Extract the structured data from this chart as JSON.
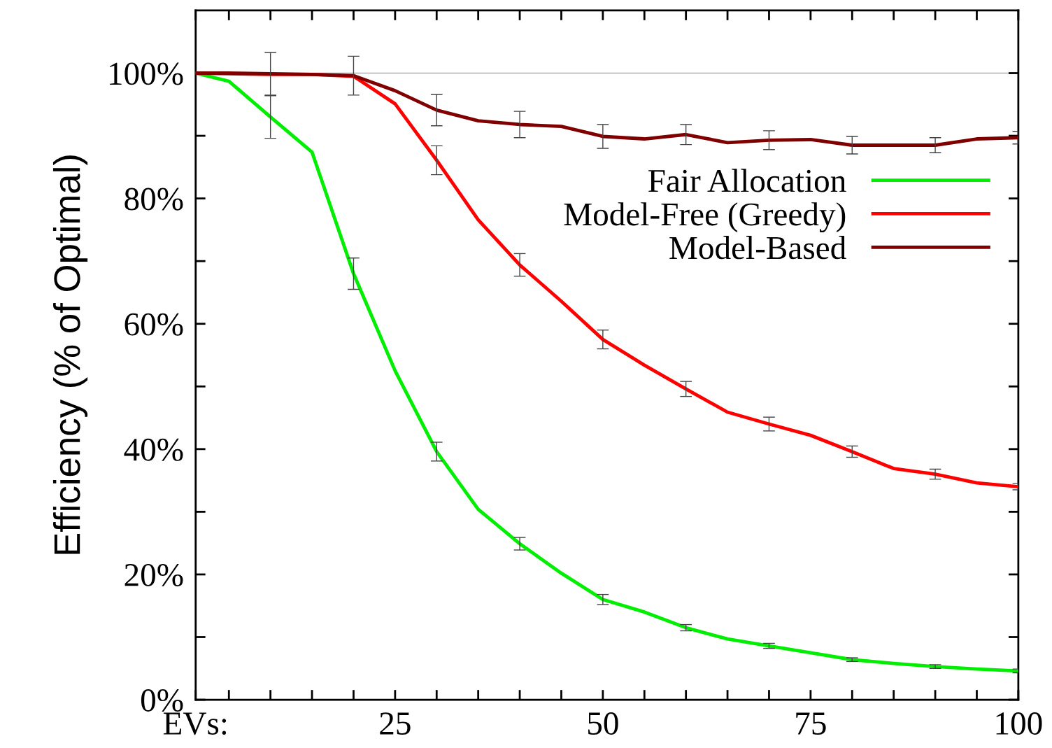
{
  "chart_data": {
    "type": "line",
    "ylabel": "Efficiency (% of Optimal)",
    "x": [
      1,
      5,
      10,
      15,
      20,
      25,
      30,
      35,
      40,
      45,
      50,
      55,
      60,
      65,
      70,
      75,
      80,
      85,
      90,
      95,
      100
    ],
    "xlim": [
      1,
      100
    ],
    "xticks": [
      {
        "value": 1,
        "label": "EVs:"
      },
      {
        "value": 5,
        "label": null
      },
      {
        "value": 10,
        "label": null
      },
      {
        "value": 15,
        "label": null
      },
      {
        "value": 20,
        "label": null
      },
      25,
      {
        "value": 30,
        "label": null
      },
      {
        "value": 35,
        "label": null
      },
      {
        "value": 40,
        "label": null
      },
      {
        "value": 45,
        "label": null
      },
      50,
      {
        "value": 55,
        "label": null
      },
      {
        "value": 60,
        "label": null
      },
      {
        "value": 65,
        "label": null
      },
      {
        "value": 70,
        "label": null
      },
      75,
      {
        "value": 80,
        "label": null
      },
      {
        "value": 85,
        "label": null
      },
      {
        "value": 90,
        "label": null
      },
      {
        "value": 95,
        "label": null
      },
      100
    ],
    "ylim": [
      0,
      110
    ],
    "yticks": [
      {
        "value": 0,
        "label": "0%"
      },
      {
        "value": 10,
        "label": null
      },
      {
        "value": 20,
        "label": "20%"
      },
      {
        "value": 30,
        "label": null
      },
      {
        "value": 40,
        "label": "40%"
      },
      {
        "value": 50,
        "label": null
      },
      {
        "value": 60,
        "label": "60%"
      },
      {
        "value": 70,
        "label": null
      },
      {
        "value": 80,
        "label": "80%"
      },
      {
        "value": 90,
        "label": null
      },
      {
        "value": 100,
        "label": "100%"
      }
    ],
    "ref_lines": [
      {
        "axis": "y",
        "value": 100,
        "color": "#b0b0b0"
      }
    ],
    "grid": false,
    "legend": "right",
    "marker": "none",
    "line_style": "solid",
    "series": [
      {
        "name": "Fair Allocation",
        "color": "#00ee00",
        "values": [
          100,
          98.7,
          93.0,
          87.4,
          68.0,
          52.5,
          39.6,
          30.4,
          24.9,
          20.2,
          16.0,
          14.0,
          11.5,
          9.7,
          8.6,
          7.5,
          6.4,
          5.8,
          5.3,
          4.9,
          4.6
        ],
        "errors": [
          null,
          null,
          3.4,
          null,
          2.5,
          null,
          1.5,
          null,
          1.0,
          null,
          0.8,
          null,
          0.5,
          null,
          0.4,
          null,
          0.3,
          null,
          0.3,
          null,
          0.3
        ]
      },
      {
        "name": "Model-Free (Greedy)",
        "color": "#ff0000",
        "values": [
          100,
          99.9,
          99.8,
          99.8,
          99.5,
          95.1,
          86.1,
          76.6,
          69.4,
          63.6,
          57.5,
          53.4,
          49.6,
          45.9,
          44.0,
          42.2,
          39.6,
          36.9,
          36.0,
          34.6,
          34.0
        ],
        "errors": [
          null,
          null,
          null,
          null,
          null,
          null,
          2.3,
          null,
          1.8,
          null,
          1.5,
          null,
          1.2,
          null,
          1.1,
          null,
          0.9,
          null,
          0.8,
          null,
          0.5
        ]
      },
      {
        "name": "Model-Based",
        "color": "#800000",
        "values": [
          100,
          100,
          99.9,
          99.8,
          99.6,
          97.2,
          94.1,
          92.4,
          91.8,
          91.5,
          89.9,
          89.5,
          90.2,
          88.9,
          89.3,
          89.4,
          88.5,
          88.5,
          88.5,
          89.5,
          89.7
        ],
        "errors": [
          null,
          null,
          3.4,
          null,
          3.1,
          null,
          2.5,
          null,
          2.1,
          null,
          1.9,
          null,
          1.6,
          null,
          1.5,
          null,
          1.4,
          null,
          1.2,
          null,
          1.0
        ]
      }
    ]
  }
}
